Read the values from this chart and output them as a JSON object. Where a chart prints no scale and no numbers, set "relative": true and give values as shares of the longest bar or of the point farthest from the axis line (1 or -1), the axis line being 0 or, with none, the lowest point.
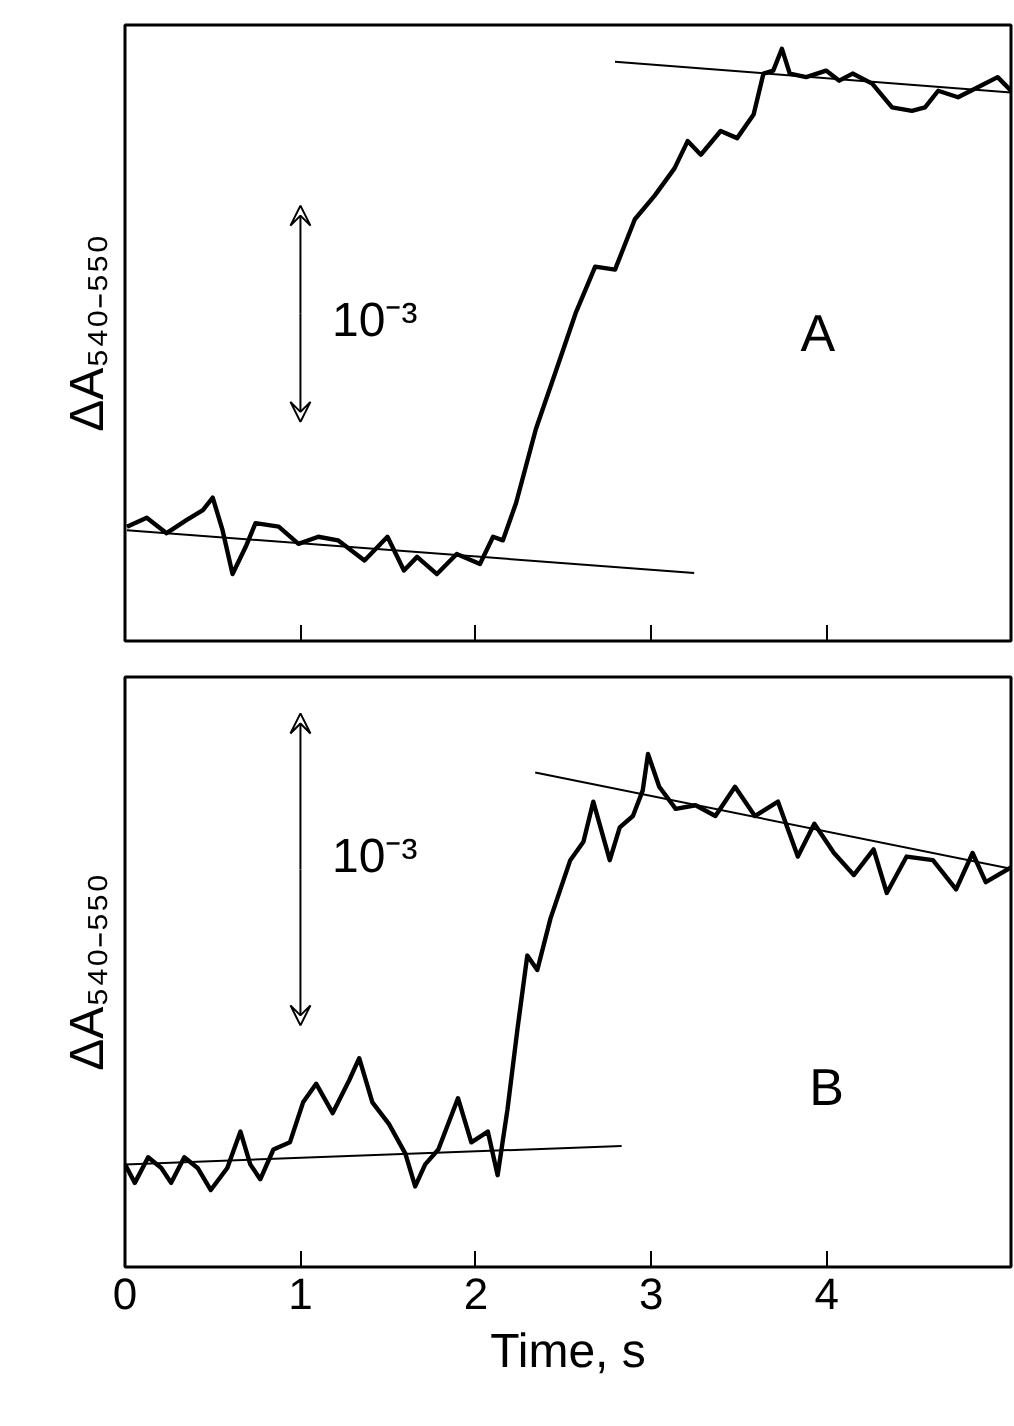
{
  "chart_data": [
    {
      "type": "line",
      "relative": true,
      "ylabel": "ΔA₅₄₀₋₅₅₀",
      "xlim": [
        0,
        5.05
      ],
      "xticks": [
        0,
        1,
        2,
        3,
        4
      ],
      "tick_labels": false,
      "grid": false,
      "annotations": [
        "10⁻³",
        "A"
      ],
      "series": [
        {
          "color": "#000000",
          "x": [
            0.011,
            0.124,
            0.237,
            0.35,
            0.444,
            0.5,
            0.556,
            0.613,
            0.688,
            0.744,
            0.876,
            0.989,
            1.102,
            1.214,
            1.365,
            1.496,
            1.59,
            1.665,
            1.778,
            1.891,
            2.023,
            2.098,
            2.154,
            2.229,
            2.342,
            2.455,
            2.568,
            2.68,
            2.793,
            2.906,
            3.019,
            3.132,
            3.207,
            3.282,
            3.395,
            3.489,
            3.583,
            3.639,
            3.695,
            3.744,
            3.789,
            3.883,
            3.996,
            4.071,
            4.147,
            4.259,
            4.372,
            4.485,
            4.56,
            4.635,
            4.748,
            4.861,
            4.974,
            5.05
          ],
          "values": [
            0.193,
            0.208,
            0.182,
            0.204,
            0.221,
            0.242,
            0.187,
            0.113,
            0.159,
            0.199,
            0.193,
            0.164,
            0.176,
            0.17,
            0.136,
            0.176,
            0.119,
            0.142,
            0.113,
            0.147,
            0.13,
            0.176,
            0.17,
            0.233,
            0.358,
            0.455,
            0.553,
            0.632,
            0.627,
            0.712,
            0.752,
            0.798,
            0.844,
            0.821,
            0.861,
            0.849,
            0.889,
            0.958,
            0.963,
            1.0,
            0.958,
            0.952,
            0.963,
            0.946,
            0.958,
            0.941,
            0.901,
            0.895,
            0.901,
            0.929,
            0.918,
            0.935,
            0.952,
            0.929
          ]
        },
        {
          "type": "line",
          "color": "#000000",
          "x": [
            0.011,
            3.244
          ],
          "values": [
            0.187,
            0.115
          ]
        },
        {
          "type": "line",
          "color": "#000000",
          "x": [
            2.793,
            5.05
          ],
          "values": [
            0.978,
            0.926
          ]
        }
      ]
    },
    {
      "type": "line",
      "relative": true,
      "ylabel": "ΔA₅₄₀₋₅₅₀",
      "xlabel": "Time, s",
      "xlim": [
        0,
        5.05
      ],
      "xticks": [
        0,
        1,
        2,
        3,
        4
      ],
      "tick_labels": "x",
      "grid": false,
      "annotations": [
        "10⁻³",
        "B"
      ],
      "series": [
        {
          "color": "#000000",
          "x": [
            0,
            0.056,
            0.132,
            0.207,
            0.263,
            0.338,
            0.414,
            0.489,
            0.583,
            0.658,
            0.714,
            0.771,
            0.846,
            0.94,
            1.015,
            1.09,
            1.184,
            1.278,
            1.335,
            1.41,
            1.504,
            1.598,
            1.654,
            1.711,
            1.786,
            1.898,
            1.974,
            2.068,
            2.124,
            2.18,
            2.237,
            2.293,
            2.35,
            2.425,
            2.538,
            2.613,
            2.669,
            2.763,
            2.82,
            2.895,
            2.951,
            2.981,
            3.045,
            3.139,
            3.252,
            3.365,
            3.477,
            3.59,
            3.722,
            3.835,
            3.929,
            4.041,
            4.154,
            4.267,
            4.342,
            4.455,
            4.605,
            4.737,
            4.831,
            4.906,
            5.05
          ],
          "values": [
            0.2,
            0.164,
            0.214,
            0.193,
            0.164,
            0.214,
            0.193,
            0.15,
            0.193,
            0.264,
            0.2,
            0.171,
            0.229,
            0.243,
            0.321,
            0.357,
            0.3,
            0.364,
            0.407,
            0.321,
            0.279,
            0.221,
            0.157,
            0.2,
            0.229,
            0.329,
            0.243,
            0.264,
            0.179,
            0.307,
            0.464,
            0.607,
            0.579,
            0.679,
            0.793,
            0.829,
            0.907,
            0.793,
            0.857,
            0.879,
            0.929,
            1.0,
            0.936,
            0.893,
            0.9,
            0.879,
            0.936,
            0.879,
            0.907,
            0.8,
            0.864,
            0.807,
            0.764,
            0.814,
            0.729,
            0.8,
            0.793,
            0.736,
            0.807,
            0.75,
            0.779
          ]
        },
        {
          "type": "line",
          "color": "#000000",
          "x": [
            0,
            2.831
          ],
          "values": [
            0.2,
            0.236
          ]
        },
        {
          "type": "line",
          "color": "#000000",
          "x": [
            2.338,
            5.05
          ],
          "values": [
            0.964,
            0.776
          ]
        }
      ]
    }
  ]
}
